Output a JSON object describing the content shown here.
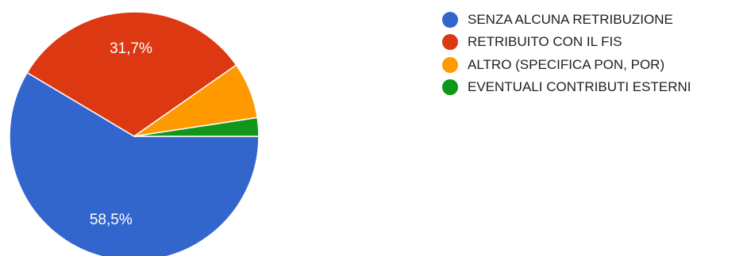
{
  "chart_data": {
    "type": "pie",
    "categories": [
      "SENZA ALCUNA RETRIBUZIONE",
      "RETRIBUITO CON IL FIS",
      "ALTRO (SPECIFICA PON, POR)",
      "EVENTUALI CONTRIBUTI ESTERNI"
    ],
    "values": [
      58.5,
      31.7,
      7.3,
      2.4
    ],
    "data_labels": [
      "58,5%",
      "31,7%",
      "",
      ""
    ],
    "colors": [
      "#3366cc",
      "#dc3912",
      "#ff9900",
      "#109618"
    ],
    "legend_position": "right",
    "start_angle": "3 o'clock",
    "direction": "clockwise"
  }
}
